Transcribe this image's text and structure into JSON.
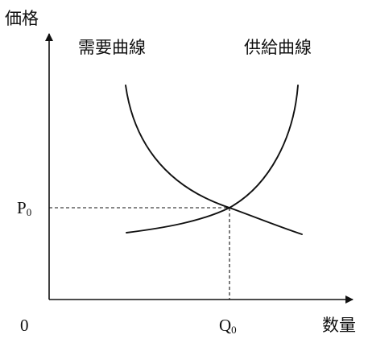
{
  "diagram": {
    "y_axis_label": "価格",
    "x_axis_label": "数量",
    "origin_label": "0",
    "demand_label": "需要曲線",
    "supply_label": "供給曲線",
    "price_label": {
      "base": "P",
      "sub": "0"
    },
    "quantity_label": {
      "base": "Q",
      "sub": "0"
    }
  }
}
